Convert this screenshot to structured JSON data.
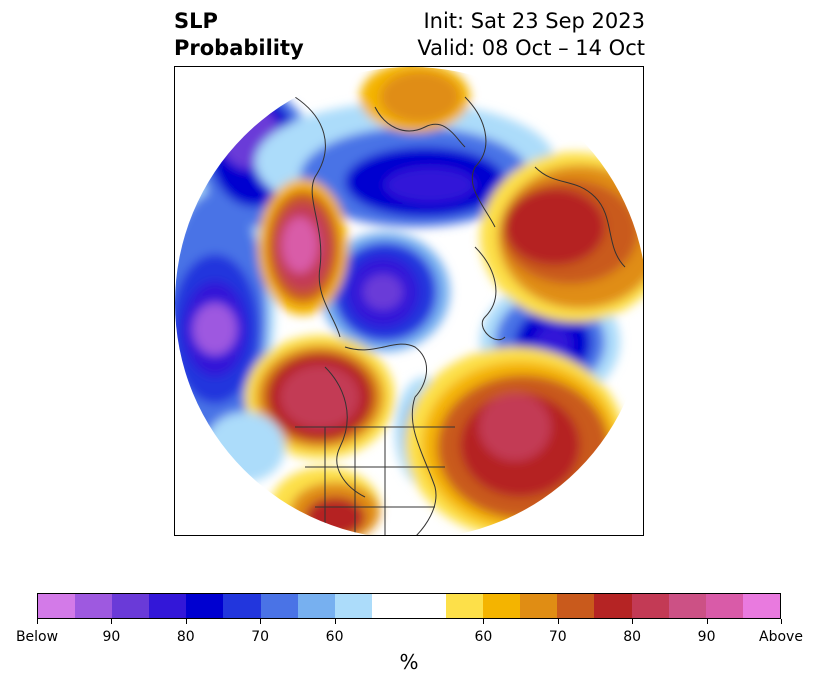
{
  "title": {
    "variable": "SLP",
    "field": "Probability",
    "init": "Init: Sat 23 Sep 2023",
    "valid": "Valid: 08 Oct – 14 Oct"
  },
  "map": {
    "projection": "north-polar-stereographic",
    "land_color": "#ffffff",
    "coast_color": "#333333",
    "regions": [
      {
        "name": "below-north-pacific-west",
        "level": "Below 90"
      },
      {
        "name": "below-arctic-siberia",
        "level": "Below 90"
      },
      {
        "name": "below-north-pacific-central",
        "level": "Below 90"
      },
      {
        "name": "below-greenland-sea",
        "level": "Below 90"
      },
      {
        "name": "below-hudson-bay",
        "level": "Below 70"
      },
      {
        "name": "above-east-siberia",
        "level": "Above 90"
      },
      {
        "name": "above-gulf-of-alaska",
        "level": "Above 90"
      },
      {
        "name": "above-north-atlantic",
        "level": "Above 90"
      },
      {
        "name": "above-russia",
        "level": "Above 80"
      },
      {
        "name": "above-scandinavia",
        "level": "Above 60"
      },
      {
        "name": "above-southwest-us",
        "level": "Above 80"
      }
    ]
  },
  "colorbar": {
    "colors": [
      "#d37ae8",
      "#9e59e0",
      "#6a3ad8",
      "#3317d8",
      "#0000d0",
      "#2236dd",
      "#4a73e6",
      "#77b0f0",
      "#acdcfa",
      "#ffffff",
      "#ffffff",
      "#fde049",
      "#f4b400",
      "#e08d14",
      "#c95a1c",
      "#b52424",
      "#c33a55",
      "#cc5185",
      "#d95ba8",
      "#e97adf"
    ],
    "ticks": [
      {
        "label": "Below",
        "index": 0
      },
      {
        "label": "90",
        "index": 2
      },
      {
        "label": "80",
        "index": 4
      },
      {
        "label": "70",
        "index": 6
      },
      {
        "label": "60",
        "index": 8
      },
      {
        "label": "60",
        "index": 12
      },
      {
        "label": "70",
        "index": 14
      },
      {
        "label": "80",
        "index": 16
      },
      {
        "label": "90",
        "index": 18
      },
      {
        "label": "Above",
        "index": 20
      }
    ],
    "unit": "%"
  }
}
